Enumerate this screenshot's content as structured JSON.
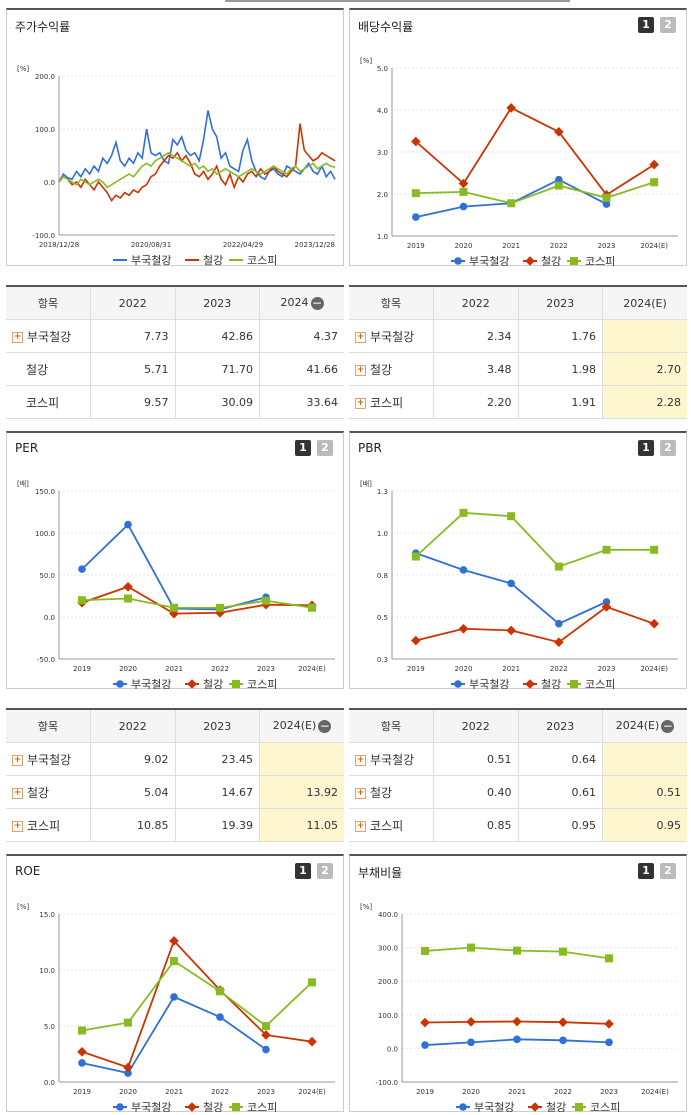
{
  "colors": {
    "bukuk": "#2f6fd9",
    "steel": "#cc3300",
    "kospi": "#88bb22"
  },
  "legend": [
    "부국철강",
    "철강",
    "코스피"
  ],
  "stock_chart": {
    "title": "주가수익률",
    "unit": "[%]",
    "yticks": [
      "200.0",
      "100.0",
      "0.0",
      "-100.0"
    ],
    "xticks": [
      "2018/12/28",
      "2020/08/31",
      "2022/04/29",
      "2023/12/28"
    ],
    "chart_data": {
      "type": "line",
      "ylim": [
        -100,
        200
      ],
      "series": [
        {
          "name": "부국철강",
          "values": [
            0,
            15,
            8,
            5,
            20,
            10,
            25,
            15,
            30,
            20,
            45,
            35,
            50,
            75,
            40,
            30,
            45,
            35,
            55,
            45,
            100,
            55,
            50,
            55,
            40,
            35,
            80,
            70,
            85,
            60,
            50,
            55,
            40,
            80,
            135,
            100,
            85,
            45,
            55,
            30,
            25,
            20,
            60,
            80,
            40,
            20,
            10,
            5,
            20,
            25,
            15,
            10,
            30,
            25,
            20,
            15,
            25,
            35,
            20,
            15,
            30,
            10,
            20,
            5
          ]
        },
        {
          "name": "철강",
          "values": [
            0,
            10,
            5,
            -5,
            0,
            -10,
            5,
            -5,
            -15,
            0,
            -10,
            -20,
            -35,
            -25,
            -30,
            -20,
            -25,
            -15,
            -20,
            -10,
            -5,
            10,
            15,
            30,
            40,
            50,
            45,
            55,
            40,
            50,
            35,
            15,
            10,
            20,
            5,
            15,
            30,
            5,
            -5,
            15,
            -10,
            10,
            0,
            15,
            20,
            10,
            25,
            15,
            20,
            30,
            20,
            15,
            10,
            20,
            30,
            110,
            60,
            50,
            40,
            45,
            55,
            50,
            45,
            40
          ]
        },
        {
          "name": "코스피",
          "values": [
            0,
            10,
            5,
            0,
            -5,
            5,
            0,
            -5,
            0,
            5,
            0,
            -10,
            -5,
            0,
            5,
            10,
            15,
            10,
            20,
            30,
            35,
            30,
            40,
            45,
            50,
            55,
            50,
            45,
            40,
            35,
            30,
            35,
            25,
            30,
            20,
            25,
            15,
            20,
            25,
            20,
            15,
            10,
            15,
            20,
            25,
            20,
            15,
            20,
            25,
            30,
            25,
            20,
            15,
            25,
            30,
            20,
            25,
            30,
            35,
            25,
            30,
            35,
            30,
            28
          ]
        }
      ]
    }
  },
  "div_chart": {
    "title": "배당수익률",
    "unit": "[%]",
    "yticks": [
      "5.0",
      "4.0",
      "3.0",
      "2.0",
      "1.0"
    ],
    "chart_data": {
      "type": "line",
      "categories": [
        "2019",
        "2020",
        "2021",
        "2022",
        "2023",
        "2024(E)"
      ],
      "ylim": [
        1,
        5
      ],
      "series": [
        {
          "name": "부국철강",
          "values": [
            1.45,
            1.7,
            1.78,
            2.34,
            1.76,
            null
          ]
        },
        {
          "name": "철강",
          "values": [
            3.25,
            2.25,
            4.05,
            3.48,
            1.98,
            2.7
          ]
        },
        {
          "name": "코스피",
          "values": [
            2.02,
            2.05,
            1.78,
            2.2,
            1.91,
            2.28
          ]
        }
      ]
    }
  },
  "per_chart": {
    "title": "PER",
    "unit": "[배]",
    "yticks": [
      "150.0",
      "100.0",
      "50.0",
      "0.0",
      "-50.0"
    ],
    "chart_data": {
      "type": "line",
      "categories": [
        "2019",
        "2020",
        "2021",
        "2022",
        "2023",
        "2024(E)"
      ],
      "ylim": [
        -50,
        150
      ],
      "series": [
        {
          "name": "부국철강",
          "values": [
            57,
            110,
            10,
            9.02,
            23.45,
            null
          ]
        },
        {
          "name": "철강",
          "values": [
            17,
            36,
            4,
            5.04,
            14.67,
            13.92
          ]
        },
        {
          "name": "코스피",
          "values": [
            20,
            22,
            11,
            10.85,
            19.39,
            11.05
          ]
        }
      ]
    }
  },
  "pbr_chart": {
    "title": "PBR",
    "unit": "[배]",
    "yticks": [
      "1.3",
      "1.0",
      "0.8",
      "0.5",
      "0.3"
    ],
    "chart_data": {
      "type": "line",
      "categories": [
        "2019",
        "2020",
        "2021",
        "2022",
        "2023",
        "2024(E)"
      ],
      "ylim": [
        0.3,
        1.3
      ],
      "series": [
        {
          "name": "부국철강",
          "values": [
            0.93,
            0.83,
            0.75,
            0.51,
            0.64,
            null
          ]
        },
        {
          "name": "철강",
          "values": [
            0.41,
            0.48,
            0.47,
            0.4,
            0.61,
            0.51
          ]
        },
        {
          "name": "코스피",
          "values": [
            0.91,
            1.17,
            1.15,
            0.85,
            0.95,
            0.95
          ]
        }
      ]
    }
  },
  "roe_chart": {
    "title": "ROE",
    "unit": "[%]",
    "yticks": [
      "15.0",
      "10.0",
      "5.0",
      "0.0"
    ],
    "chart_data": {
      "type": "line",
      "categories": [
        "2019",
        "2020",
        "2021",
        "2022",
        "2023",
        "2024(E)"
      ],
      "ylim": [
        0,
        15
      ],
      "series": [
        {
          "name": "부국철강",
          "values": [
            1.7,
            0.8,
            7.6,
            5.8,
            2.9,
            null
          ]
        },
        {
          "name": "철강",
          "values": [
            2.7,
            1.3,
            12.6,
            8.2,
            4.2,
            3.6
          ]
        },
        {
          "name": "코스피",
          "values": [
            4.6,
            5.3,
            10.8,
            8.1,
            5.0,
            8.9
          ]
        }
      ]
    }
  },
  "debt_chart": {
    "title": "부채비율",
    "unit": "[%]",
    "yticks": [
      "400.0",
      "300.0",
      "200.0",
      "100.0",
      "0.0",
      "-100.0"
    ],
    "chart_data": {
      "type": "line",
      "categories": [
        "2019",
        "2020",
        "2021",
        "2022",
        "2023",
        "2024(E)"
      ],
      "ylim": [
        -100,
        400
      ],
      "series": [
        {
          "name": "부국철강",
          "values": [
            10,
            18,
            27,
            24,
            18,
            null
          ]
        },
        {
          "name": "철강",
          "values": [
            77,
            79,
            80,
            78,
            73,
            null
          ]
        },
        {
          "name": "코스피",
          "values": [
            290,
            300,
            291,
            288,
            268,
            null
          ]
        }
      ]
    }
  },
  "table_stock": {
    "headers": [
      "항목",
      "2022",
      "2023",
      "2024"
    ],
    "rows": [
      [
        "부국철강",
        "7.73",
        "42.86",
        "4.37"
      ],
      [
        "철강",
        "5.71",
        "71.70",
        "41.66"
      ],
      [
        "코스피",
        "9.57",
        "30.09",
        "33.64"
      ]
    ]
  },
  "table_div": {
    "headers": [
      "항목",
      "2022",
      "2023",
      "2024(E)"
    ],
    "rows": [
      [
        "부국철강",
        "2.34",
        "1.76",
        ""
      ],
      [
        "철강",
        "3.48",
        "1.98",
        "2.70"
      ],
      [
        "코스피",
        "2.20",
        "1.91",
        "2.28"
      ]
    ]
  },
  "table_per": {
    "headers": [
      "항목",
      "2022",
      "2023",
      "2024(E)"
    ],
    "rows": [
      [
        "부국철강",
        "9.02",
        "23.45",
        ""
      ],
      [
        "철강",
        "5.04",
        "14.67",
        "13.92"
      ],
      [
        "코스피",
        "10.85",
        "19.39",
        "11.05"
      ]
    ]
  },
  "table_pbr": {
    "headers": [
      "항목",
      "2022",
      "2023",
      "2024(E)"
    ],
    "rows": [
      [
        "부국철강",
        "0.51",
        "0.64",
        ""
      ],
      [
        "철강",
        "0.40",
        "0.61",
        "0.51"
      ],
      [
        "코스피",
        "0.85",
        "0.95",
        "0.95"
      ]
    ]
  },
  "btn1": "1",
  "btn2": "2",
  "plus": "+",
  "minus": "−"
}
